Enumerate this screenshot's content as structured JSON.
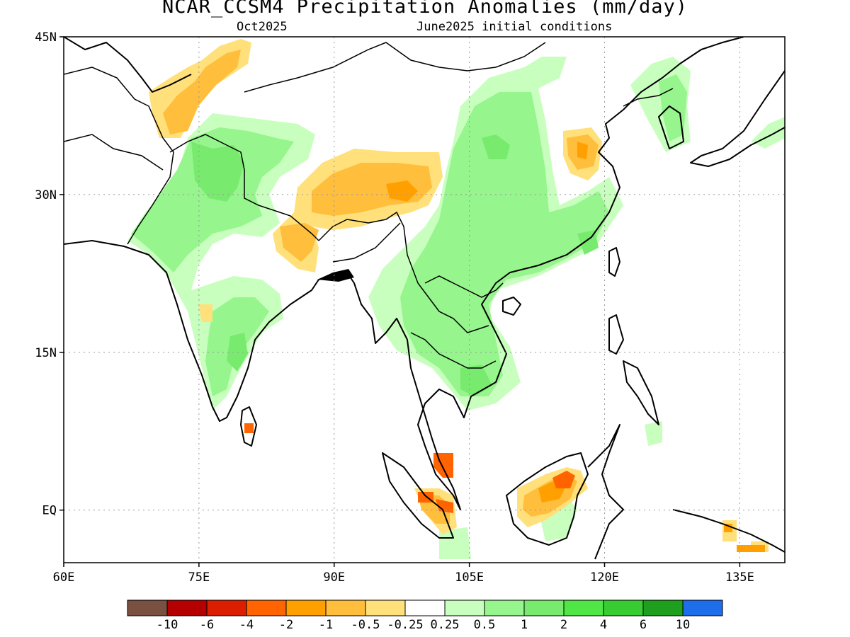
{
  "header": {
    "title": "NCAR_CCSM4 Precipitation Anomalies (mm/day)",
    "subtitle_left": "Oct2025",
    "subtitle_right": "June2025 initial conditions"
  },
  "axes": {
    "lat_labels": [
      "45N",
      "30N",
      "15N",
      "EQ"
    ],
    "lon_labels": [
      "60E",
      "75E",
      "90E",
      "105E",
      "120E",
      "135E"
    ],
    "lat_ticks": [
      45,
      30,
      15,
      0
    ],
    "lon_ticks": [
      60,
      75,
      90,
      105,
      120,
      135
    ],
    "extent": {
      "lon": [
        60,
        140
      ],
      "lat": [
        -5,
        45
      ]
    },
    "grid": true
  },
  "colorbar": {
    "colors": [
      "#7a5040",
      "#b40000",
      "#dc1e00",
      "#ff6400",
      "#ffa000",
      "#ffbe3c",
      "#ffe07a",
      "#ffffff",
      "#c8ffbe",
      "#96f58c",
      "#78eb6e",
      "#50e646",
      "#37cd32",
      "#1ea01e",
      "#1e6eeb"
    ],
    "labels": [
      "-10",
      "-6",
      "-4",
      "-2",
      "-1",
      "-0.5",
      "-0.25",
      "0.25",
      "0.5",
      "1",
      "2",
      "4",
      "6",
      "10"
    ]
  },
  "legend_colors": {
    "wet_light": "#c8ffbe",
    "wet": "#96f58c",
    "wet_more": "#78eb6e",
    "dry_light": "#ffe07a",
    "dry": "#ffbe3c",
    "dry_more": "#ffa000",
    "dry_strong": "#ff6400"
  }
}
